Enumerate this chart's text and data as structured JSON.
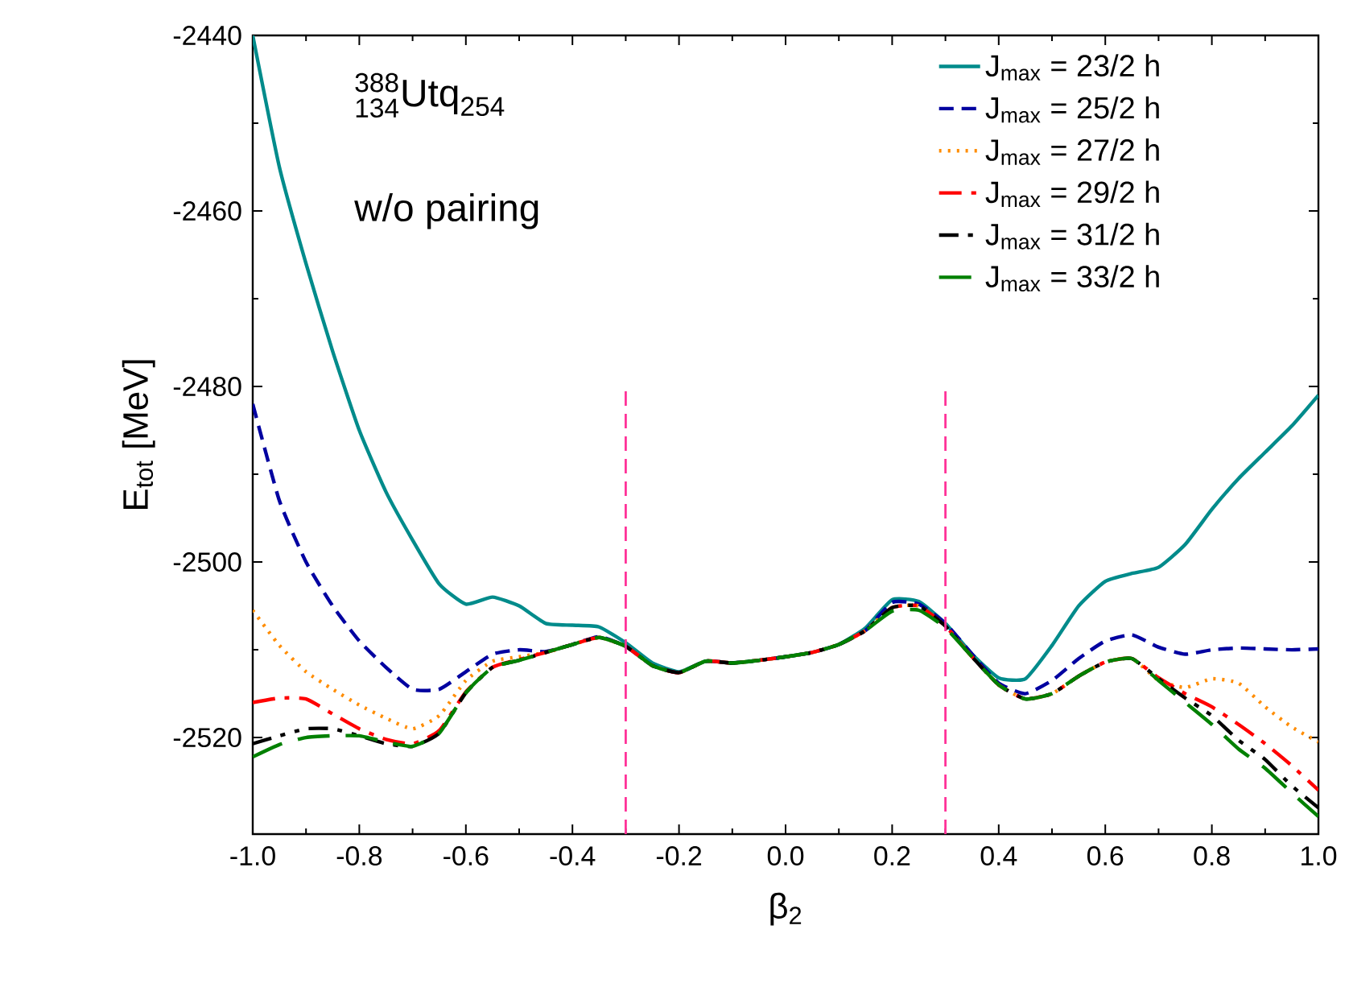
{
  "chart_data": {
    "type": "line",
    "xlabel": "β$_{2}$",
    "ylabel": "E$_{tot}$ [MeV]",
    "annotations": [
      "{}^{\\textrm{388}}_{\\textrm{134}}\\textrm{Utq}_{\\textrm{254}}",
      "w/o pairing"
    ],
    "x": [
      -1,
      -0.95,
      -0.9,
      -0.85,
      -0.8,
      -0.75,
      -0.7,
      -0.65,
      -0.6,
      -0.55,
      -0.5,
      -0.45,
      -0.4,
      -0.35,
      -0.3,
      -0.25,
      -0.2,
      -0.15,
      -0.1,
      -0.05,
      0,
      0.05,
      0.1,
      0.15,
      0.2,
      0.25,
      0.3,
      0.35,
      0.4,
      0.45,
      0.5,
      0.55,
      0.6,
      0.65,
      0.7,
      0.75,
      0.8,
      0.85,
      0.9,
      0.95,
      1.0
    ],
    "series": [
      {
        "name": "J$_{max}$ = 23/2 h",
        "color": "#008b8b",
        "line_style": "solid",
        "values": [
          -2440,
          -2455,
          -2466,
          -2476,
          -2485,
          -2492,
          -2497.5,
          -2502.5,
          -2504.8,
          -2504,
          -2505,
          -2507,
          -2507.2,
          -2507.4,
          -2509.2,
          -2511.5,
          -2512.5,
          -2511.3,
          -2511.5,
          -2511.2,
          -2510.8,
          -2510.3,
          -2509.4,
          -2507.5,
          -2504.3,
          -2504.5,
          -2507,
          -2510.5,
          -2513.2,
          -2513.3,
          -2509.5,
          -2505,
          -2502.2,
          -2501.3,
          -2500.6,
          -2498,
          -2494,
          -2490.5,
          -2487.5,
          -2484.5,
          -2481
        ]
      },
      {
        "name": "J$_{max}$ = 25/2 h",
        "color": "#0000a0",
        "line_style": "dashed",
        "values": [
          -2482,
          -2493,
          -2500,
          -2505,
          -2509,
          -2512,
          -2514.5,
          -2514.5,
          -2512.5,
          -2510.5,
          -2510,
          -2510.2,
          -2509.4,
          -2508.5,
          -2509.6,
          -2511.8,
          -2512.6,
          -2511.3,
          -2511.5,
          -2511.2,
          -2510.8,
          -2510.3,
          -2509.4,
          -2507.8,
          -2504.6,
          -2504.8,
          -2507,
          -2510.5,
          -2513.8,
          -2515,
          -2513.5,
          -2511,
          -2509,
          -2508.3,
          -2509.7,
          -2510.5,
          -2510,
          -2509.8,
          -2509.9,
          -2510,
          -2509.9
        ]
      },
      {
        "name": "J$_{max}$ = 27/2 h",
        "color": "#ff8c00",
        "line_style": "dotted",
        "values": [
          -2505.5,
          -2509.5,
          -2512.5,
          -2514.5,
          -2516.3,
          -2517.8,
          -2519,
          -2517.5,
          -2513.5,
          -2511.3,
          -2510.8,
          -2510.3,
          -2509.4,
          -2508.6,
          -2509.6,
          -2511.8,
          -2512.6,
          -2511.3,
          -2511.5,
          -2511.2,
          -2510.8,
          -2510.3,
          -2509.4,
          -2507.8,
          -2505.2,
          -2505,
          -2507.3,
          -2510.8,
          -2514,
          -2515.6,
          -2515,
          -2513,
          -2511.4,
          -2511,
          -2513.5,
          -2514.3,
          -2513.3,
          -2513.8,
          -2516.5,
          -2518.8,
          -2520.5
        ]
      },
      {
        "name": "J$_{max}$ = 29/2 h",
        "color": "#ff0000",
        "line_style": "dashdot",
        "values": [
          -2516,
          -2515.5,
          -2515.6,
          -2517.3,
          -2519,
          -2520.2,
          -2520.7,
          -2519.2,
          -2514.8,
          -2512,
          -2511.1,
          -2510.3,
          -2509.4,
          -2508.6,
          -2509.6,
          -2511.8,
          -2512.6,
          -2511.3,
          -2511.5,
          -2511.2,
          -2510.8,
          -2510.3,
          -2509.4,
          -2507.8,
          -2505.2,
          -2505,
          -2507.3,
          -2510.8,
          -2514,
          -2515.6,
          -2515,
          -2513,
          -2511.4,
          -2511,
          -2513.2,
          -2515,
          -2516.5,
          -2518.5,
          -2520.7,
          -2523.2,
          -2526
        ]
      },
      {
        "name": "J$_{max}$ = 31/2 h",
        "color": "#000000",
        "line_style": "dashdotdot",
        "values": [
          -2520.7,
          -2519.8,
          -2519,
          -2519,
          -2519.8,
          -2520.7,
          -2521,
          -2519.5,
          -2514.9,
          -2512,
          -2511.2,
          -2510.3,
          -2509.4,
          -2508.6,
          -2509.6,
          -2511.8,
          -2512.6,
          -2511.3,
          -2511.5,
          -2511.2,
          -2510.8,
          -2510.3,
          -2509.4,
          -2507.8,
          -2505.2,
          -2505,
          -2507.3,
          -2510.8,
          -2514,
          -2515.6,
          -2515,
          -2513,
          -2511.4,
          -2511,
          -2513.3,
          -2515.5,
          -2517.5,
          -2520.3,
          -2522.5,
          -2525.5,
          -2528
        ]
      },
      {
        "name": "J$_{max}$ = 33/2 h",
        "color": "#008000",
        "line_style": "longdashed",
        "values": [
          -2522.2,
          -2520.8,
          -2520,
          -2519.8,
          -2519.8,
          -2520.5,
          -2521,
          -2519.5,
          -2514.9,
          -2512,
          -2511.2,
          -2510.3,
          -2509.4,
          -2508.6,
          -2509.6,
          -2511.8,
          -2512.6,
          -2511.3,
          -2511.5,
          -2511.2,
          -2510.8,
          -2510.3,
          -2509.4,
          -2507.8,
          -2505.6,
          -2505.5,
          -2507.5,
          -2510.8,
          -2514,
          -2515.6,
          -2515,
          -2513,
          -2511.4,
          -2511,
          -2513.5,
          -2516,
          -2518.5,
          -2521.3,
          -2523.5,
          -2526.3,
          -2529
        ]
      }
    ],
    "ref_lines": [
      {
        "axis": "x",
        "value": -0.3,
        "color": "#ff3399",
        "line_style": "dashed"
      },
      {
        "axis": "x",
        "value": 0.3,
        "color": "#ff3399",
        "line_style": "dashed"
      }
    ],
    "xlim": [
      -1,
      1
    ],
    "ylim": [
      -2531,
      -2440
    ],
    "xticks": [
      {
        "value": -1,
        "label": "-1.0"
      },
      {
        "value": -0.8,
        "label": "-0.8"
      },
      {
        "value": -0.6,
        "label": "-0.6"
      },
      {
        "value": -0.4,
        "label": "-0.4"
      },
      {
        "value": -0.2,
        "label": "-0.2"
      },
      {
        "value": 0,
        "label": "0.0"
      },
      {
        "value": 0.2,
        "label": "0.2"
      },
      {
        "value": 0.4,
        "label": "0.4"
      },
      {
        "value": 0.6,
        "label": "0.6"
      },
      {
        "value": 0.8,
        "label": "0.8"
      },
      {
        "value": 1,
        "label": "1.0"
      }
    ],
    "yticks": [
      -2440,
      -2460,
      -2480,
      -2500,
      -2520
    ],
    "legend": "top right",
    "grid": false,
    "marker": "none"
  }
}
